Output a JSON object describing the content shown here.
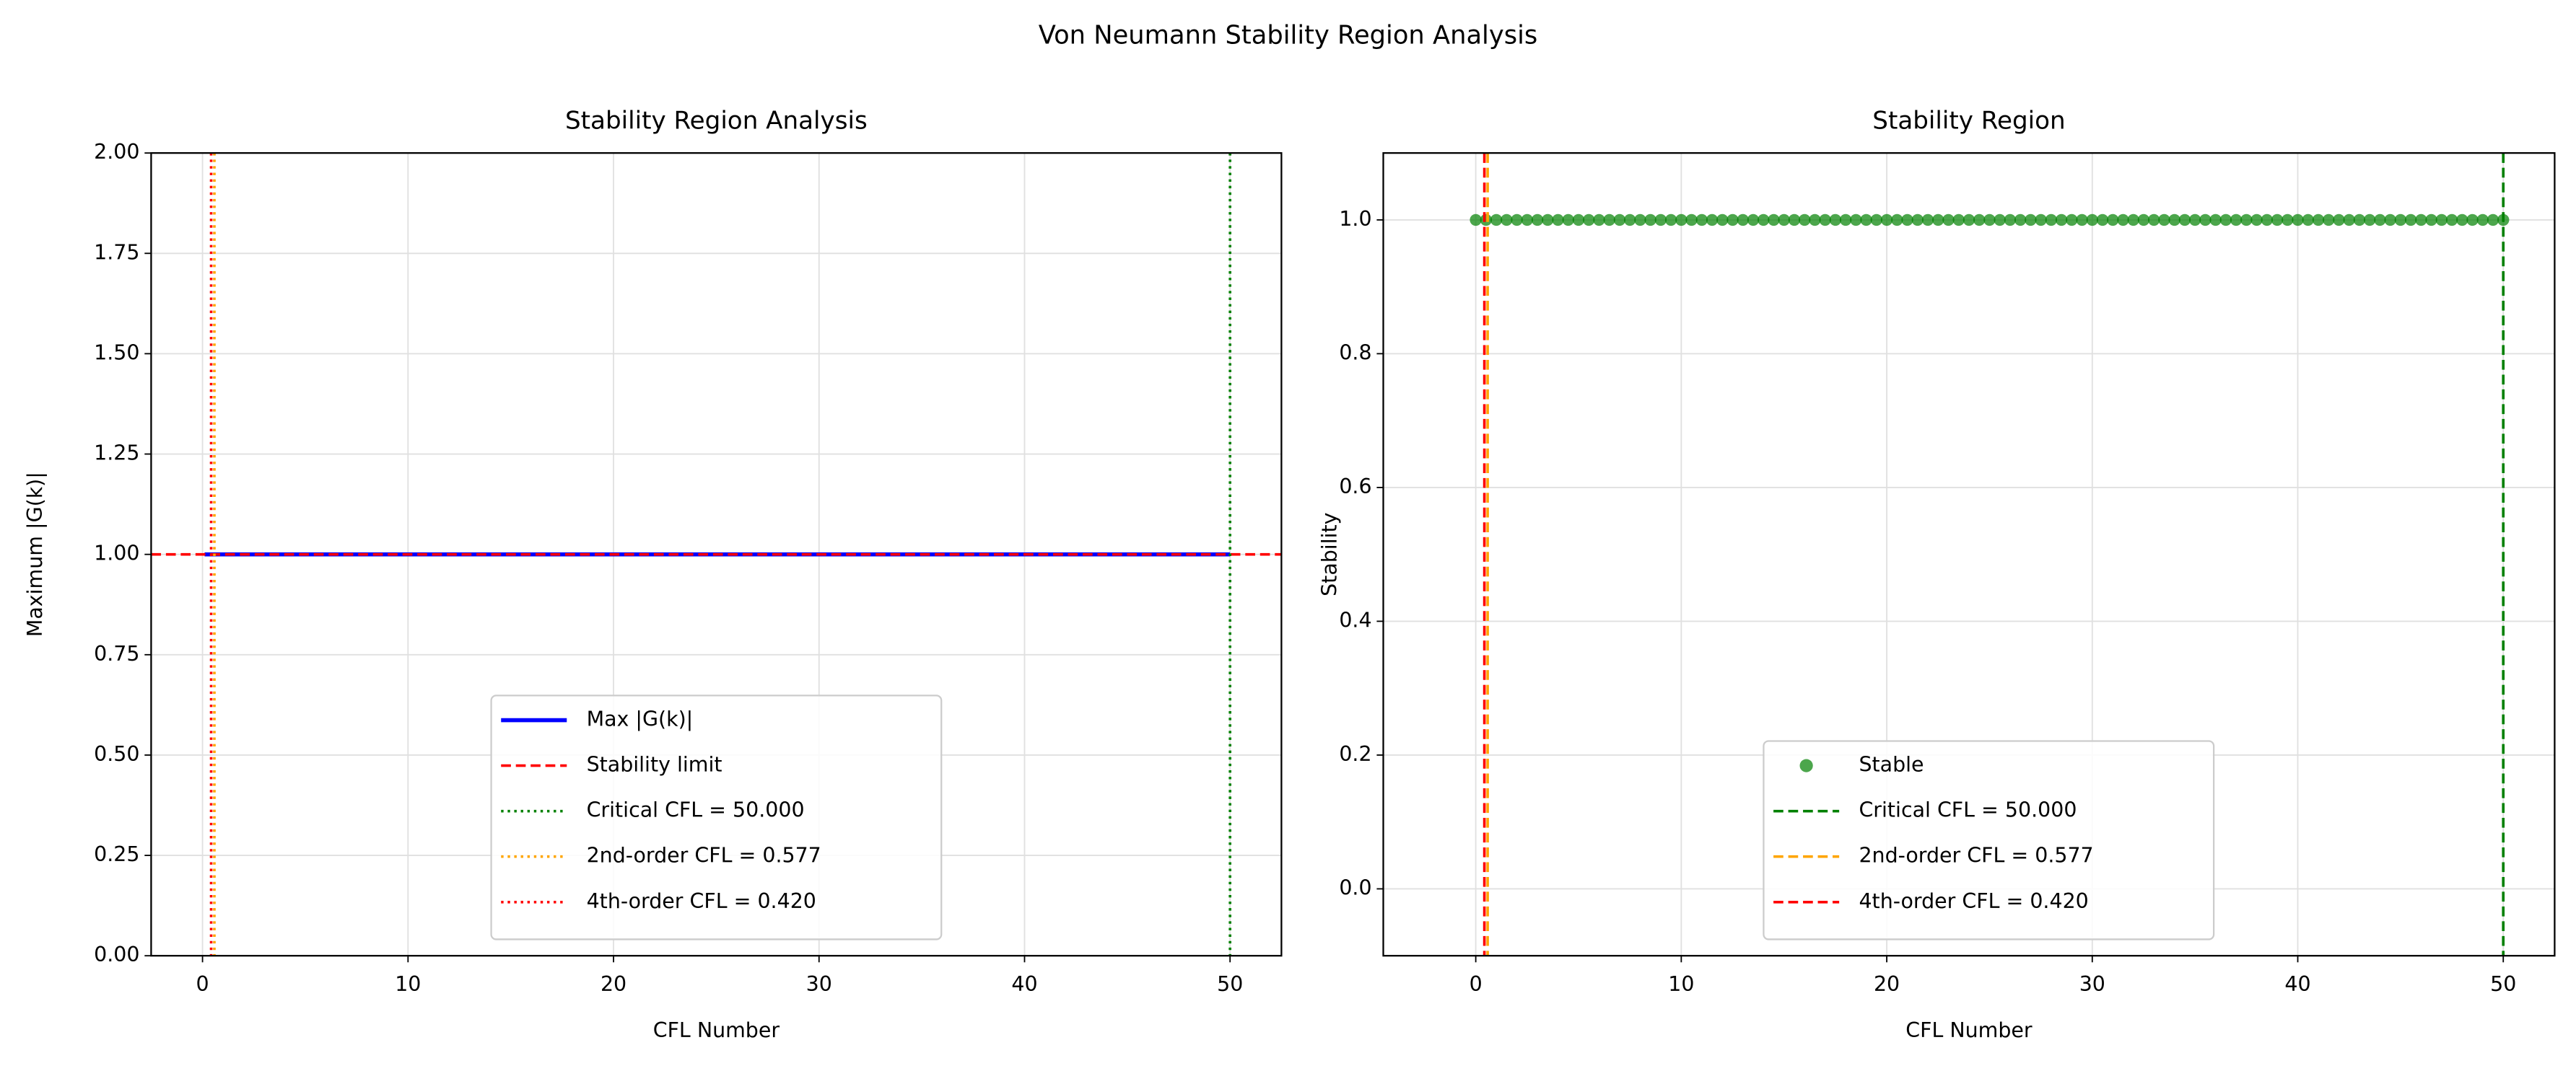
{
  "chart_data": [
    {
      "type": "line",
      "suptitle": "Von Neumann Stability Region Analysis",
      "title": "Stability Region Analysis",
      "xlabel": "CFL Number",
      "ylabel": "Maximum |G(k)|",
      "xlim": [
        -2.5,
        52.5
      ],
      "xticks": [
        0,
        10,
        20,
        30,
        40,
        50
      ],
      "ylim": [
        0,
        2
      ],
      "yticks": [
        {
          "value": 0,
          "label": "0.00"
        },
        {
          "value": 0.25,
          "label": "0.25"
        },
        {
          "value": 0.5,
          "label": "0.50"
        },
        {
          "value": 0.75,
          "label": "0.75"
        },
        {
          "value": 1,
          "label": "1.00"
        },
        {
          "value": 1.25,
          "label": "1.25"
        },
        {
          "value": 1.5,
          "label": "1.50"
        },
        {
          "value": 1.75,
          "label": "1.75"
        },
        {
          "value": 2,
          "label": "2.00"
        }
      ],
      "grid": true,
      "legend": "lower center",
      "series": [
        {
          "name": "Max |G(k)|",
          "color": "#0000ff",
          "x": [
            0.1,
            50
          ],
          "values": [
            1,
            1
          ]
        }
      ],
      "hlines": [
        {
          "name": "Stability limit",
          "value": 1,
          "color": "#ff0000",
          "style": "dashed"
        }
      ],
      "vlines": [
        {
          "name": "Critical CFL = 50.000",
          "value": 50,
          "color": "#008000",
          "style": "dotted"
        },
        {
          "name": "2nd-order CFL = 0.577",
          "value": 0.577,
          "color": "#ffa500",
          "style": "dotted"
        },
        {
          "name": "4th-order CFL = 0.420",
          "value": 0.42,
          "color": "#ff0000",
          "style": "dotted"
        }
      ]
    },
    {
      "type": "scatter",
      "title": "Stability Region",
      "xlabel": "CFL Number",
      "ylabel": "Stability",
      "xlim": [
        -4.5,
        52.5
      ],
      "xticks": [
        0,
        10,
        20,
        30,
        40,
        50
      ],
      "ylim": [
        -0.1,
        1.1
      ],
      "yticks": [
        {
          "value": 0,
          "label": "0.0"
        },
        0.2,
        0.4,
        0.6,
        0.8,
        {
          "value": 1,
          "label": "1.0"
        }
      ],
      "grid": true,
      "legend": "lower center",
      "series": [
        {
          "name": "Stable",
          "color": "#008000",
          "x": [
            0,
            0.5,
            1,
            1.5,
            2,
            2.5,
            3,
            3.5,
            4,
            4.5,
            5,
            5.5,
            6,
            6.5,
            7,
            7.5,
            8,
            8.5,
            9,
            9.5,
            10,
            10.5,
            11,
            11.5,
            12,
            12.5,
            13,
            13.5,
            14,
            14.5,
            15,
            15.5,
            16,
            16.5,
            17,
            17.5,
            18,
            18.5,
            19,
            19.5,
            20,
            20.5,
            21,
            21.5,
            22,
            22.5,
            23,
            23.5,
            24,
            24.5,
            25,
            25.5,
            26,
            26.5,
            27,
            27.5,
            28,
            28.5,
            29,
            29.5,
            30,
            30.5,
            31,
            31.5,
            32,
            32.5,
            33,
            33.5,
            34,
            34.5,
            35,
            35.5,
            36,
            36.5,
            37,
            37.5,
            38,
            38.5,
            39,
            39.5,
            40,
            40.5,
            41,
            41.5,
            42,
            42.5,
            43,
            43.5,
            44,
            44.5,
            45,
            45.5,
            46,
            46.5,
            47,
            47.5,
            48,
            48.5,
            49,
            49.5,
            50
          ],
          "values": [
            1,
            1,
            1,
            1,
            1,
            1,
            1,
            1,
            1,
            1,
            1,
            1,
            1,
            1,
            1,
            1,
            1,
            1,
            1,
            1,
            1,
            1,
            1,
            1,
            1,
            1,
            1,
            1,
            1,
            1,
            1,
            1,
            1,
            1,
            1,
            1,
            1,
            1,
            1,
            1,
            1,
            1,
            1,
            1,
            1,
            1,
            1,
            1,
            1,
            1,
            1,
            1,
            1,
            1,
            1,
            1,
            1,
            1,
            1,
            1,
            1,
            1,
            1,
            1,
            1,
            1,
            1,
            1,
            1,
            1,
            1,
            1,
            1,
            1,
            1,
            1,
            1,
            1,
            1,
            1,
            1,
            1,
            1,
            1,
            1,
            1,
            1,
            1,
            1,
            1,
            1,
            1,
            1,
            1,
            1,
            1,
            1,
            1,
            1,
            1,
            1
          ]
        }
      ],
      "hlines": [],
      "vlines": [
        {
          "name": "Critical CFL = 50.000",
          "value": 50,
          "color": "#008000",
          "style": "dashed"
        },
        {
          "name": "2nd-order CFL = 0.577",
          "value": 0.577,
          "color": "#ffa500",
          "style": "dashed"
        },
        {
          "name": "4th-order CFL = 0.420",
          "value": 0.42,
          "color": "#ff0000",
          "style": "dashed"
        }
      ]
    }
  ]
}
